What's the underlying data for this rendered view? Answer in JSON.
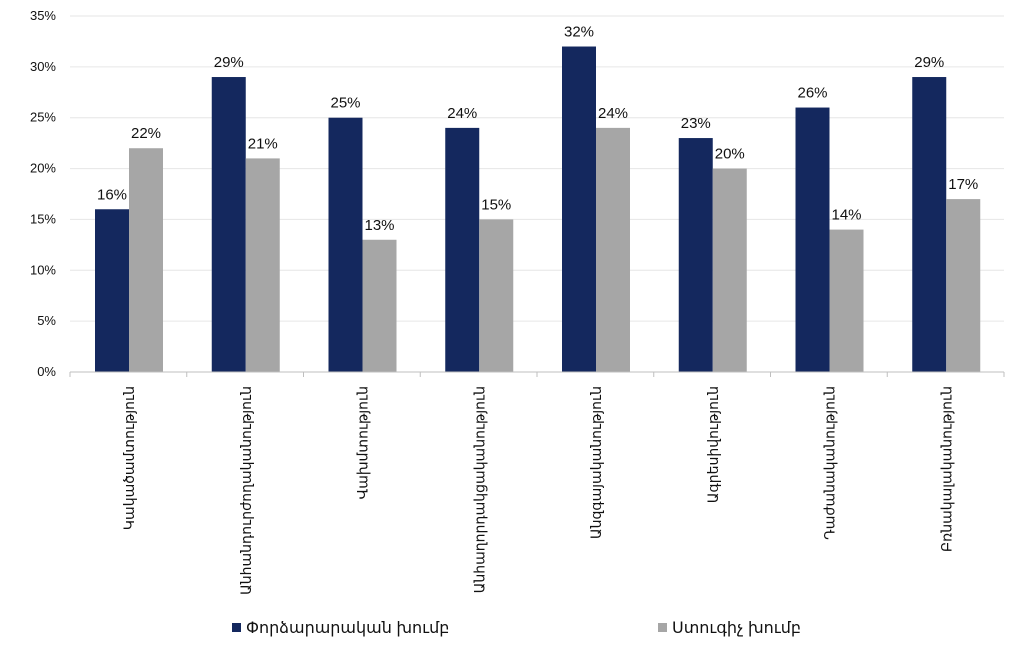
{
  "chart_data": {
    "type": "bar",
    "categories": [
      "Կակածամտություն",
      "Անհանդուրժողականություն",
      "Վախմտություն",
      "Անհաղորդակցականություն",
      "Անզգայականություն",
      "Ագրեսիվություն",
      "Դաժանականություն",
      "Բռնակալականություն"
    ],
    "series": [
      {
        "name": "Փորձարարական խումբ",
        "color": "#14285e",
        "values": [
          16,
          29,
          25,
          24,
          32,
          23,
          26,
          29
        ]
      },
      {
        "name": "Ստուգիչ խումբ",
        "color": "#a6a6a6",
        "values": [
          22,
          21,
          13,
          15,
          24,
          20,
          14,
          17
        ]
      }
    ],
    "data_labels": [
      [
        "16%",
        "29%",
        "25%",
        "24%",
        "32%",
        "23%",
        "26%",
        "29%"
      ],
      [
        "22%",
        "21%",
        "13%",
        "15%",
        "24%",
        "20%",
        "14%",
        "17%"
      ]
    ],
    "ylim": [
      0,
      35
    ],
    "yticks": [
      0,
      5,
      10,
      15,
      20,
      25,
      30,
      35
    ],
    "ytick_labels": [
      "0%",
      "5%",
      "10%",
      "15%",
      "20%",
      "25%",
      "30%",
      "35%"
    ],
    "grid": true,
    "gridline_color": "#e6e6e6",
    "legend_position": "bottom",
    "title": "",
    "xlabel": "",
    "ylabel": ""
  }
}
